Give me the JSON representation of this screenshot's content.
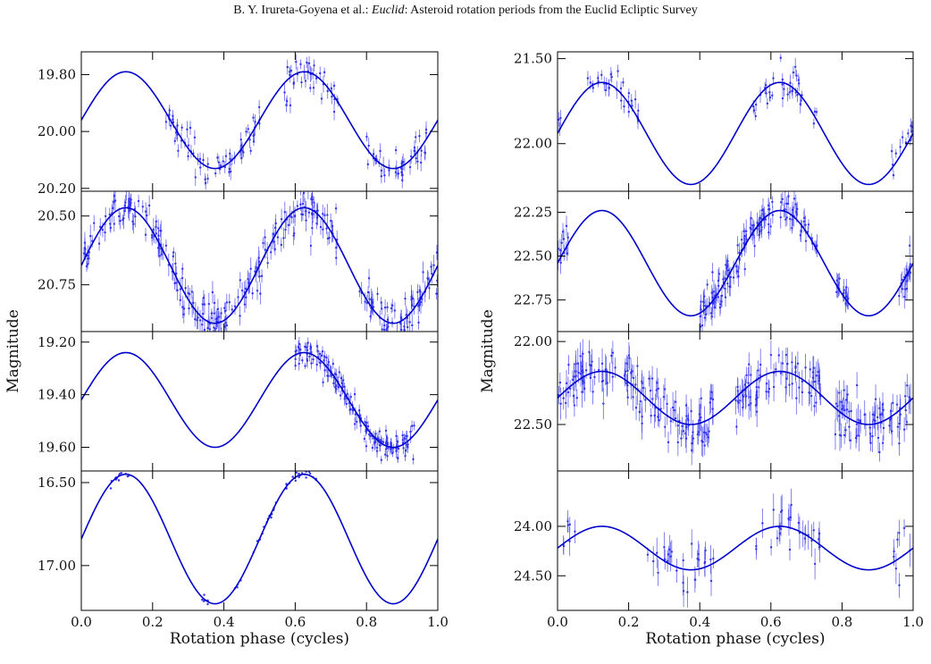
{
  "header": {
    "authors": "B. Y. Irureta-Goyena et al.: ",
    "journal": "Euclid",
    "rest": ": Asteroid rotation periods from the Euclid Ecliptic Survey"
  },
  "chart_data": [
    {
      "type": "line",
      "column": "left",
      "row": 0,
      "ylim": [
        20.21,
        19.72
      ],
      "yticks": [
        19.8,
        20.0,
        20.2
      ],
      "ytick_labels": [
        "19.80",
        "20.00",
        "20.20"
      ],
      "model": {
        "mean": 19.96,
        "amplitude": 0.17,
        "phase_max": 0.125
      },
      "obs_ranges": [
        [
          0.23,
          0.5
        ],
        [
          0.57,
          0.72
        ],
        [
          0.8,
          0.98
        ]
      ],
      "obs_count": 150,
      "noise": 0.03,
      "err": 0.022,
      "color": "#0000cc",
      "point_color": "#3333ee"
    },
    {
      "type": "line",
      "column": "left",
      "row": 1,
      "ylim": [
        20.92,
        20.41
      ],
      "yticks": [
        20.5,
        20.75
      ],
      "ytick_labels": [
        "20.50",
        "20.75"
      ],
      "model": {
        "mean": 20.68,
        "amplitude": 0.21,
        "phase_max": 0.125
      },
      "obs_ranges": [
        [
          0.0,
          0.5
        ],
        [
          0.5,
          0.72
        ],
        [
          0.78,
          1.0
        ]
      ],
      "obs_count": 320,
      "noise": 0.04,
      "err": 0.03,
      "color": "#0000cc",
      "point_color": "#3333ee"
    },
    {
      "type": "line",
      "column": "left",
      "row": 2,
      "ylim": [
        19.69,
        19.16
      ],
      "yticks": [
        19.2,
        19.4,
        19.6
      ],
      "ytick_labels": [
        "19.20",
        "19.40",
        "19.60"
      ],
      "model": {
        "mean": 19.42,
        "amplitude": 0.18,
        "phase_max": 0.125
      },
      "obs_ranges": [
        [
          0.6,
          0.94
        ]
      ],
      "obs_count": 170,
      "noise": 0.025,
      "err": 0.02,
      "color": "#0000cc",
      "point_color": "#3333ee"
    },
    {
      "type": "line",
      "column": "left",
      "row": 3,
      "ylim": [
        17.27,
        16.43
      ],
      "yticks": [
        16.5,
        17.0
      ],
      "ytick_labels": [
        "16.50",
        "17.00"
      ],
      "model": {
        "mean": 16.84,
        "amplitude": 0.39,
        "phase_max": 0.125
      },
      "obs_ranges": [
        [
          0.08,
          0.14
        ],
        [
          0.33,
          0.36
        ],
        [
          0.43,
          0.45
        ],
        [
          0.48,
          0.55
        ],
        [
          0.57,
          0.66
        ]
      ],
      "obs_count": 60,
      "noise": 0.012,
      "err": 0.006,
      "color": "#0000cc",
      "point_color": "#3333ee",
      "xticks": [
        0.0,
        0.2,
        0.4,
        0.6,
        0.8,
        1.0
      ],
      "xtick_labels": [
        "0.0",
        "0.2",
        "0.4",
        "0.6",
        "0.8",
        "1.0"
      ],
      "xlabel": "Rotation phase (cycles)"
    },
    {
      "type": "line",
      "column": "right",
      "row": 0,
      "ylim": [
        22.28,
        21.46
      ],
      "yticks": [
        21.5,
        22.0
      ],
      "ytick_labels": [
        "21.50",
        "22.00"
      ],
      "model": {
        "mean": 21.94,
        "amplitude": 0.3,
        "phase_max": 0.125
      },
      "obs_ranges": [
        [
          0.0,
          0.01
        ],
        [
          0.08,
          0.23
        ],
        [
          0.55,
          0.73
        ],
        [
          0.94,
          1.0
        ]
      ],
      "obs_count": 80,
      "noise": 0.05,
      "err": 0.04,
      "color": "#0000cc",
      "point_color": "#3333ee"
    },
    {
      "type": "line",
      "column": "right",
      "row": 1,
      "ylim": [
        22.93,
        22.13
      ],
      "yticks": [
        22.25,
        22.5,
        22.75
      ],
      "ytick_labels": [
        "22.25",
        "22.50",
        "22.75"
      ],
      "model": {
        "mean": 22.54,
        "amplitude": 0.3,
        "phase_max": 0.125
      },
      "obs_ranges": [
        [
          0.0,
          0.03
        ],
        [
          0.4,
          0.73
        ],
        [
          0.78,
          0.82
        ],
        [
          0.96,
          1.0
        ]
      ],
      "obs_count": 200,
      "noise": 0.05,
      "err": 0.05,
      "color": "#0000cc",
      "point_color": "#3333ee"
    },
    {
      "type": "line",
      "column": "right",
      "row": 2,
      "ylim": [
        22.78,
        21.94
      ],
      "yticks": [
        22.0,
        22.5
      ],
      "ytick_labels": [
        "22.00",
        "22.50"
      ],
      "model": {
        "mean": 22.34,
        "amplitude": 0.16,
        "phase_max": 0.125
      },
      "obs_ranges": [
        [
          0.0,
          0.44
        ],
        [
          0.5,
          0.74
        ],
        [
          0.78,
          1.0
        ]
      ],
      "obs_count": 300,
      "noise": 0.08,
      "err": 0.07,
      "color": "#0000cc",
      "point_color": "#3333ee"
    },
    {
      "type": "line",
      "column": "right",
      "row": 3,
      "ylim": [
        24.85,
        23.44
      ],
      "yticks": [
        24.0,
        24.5
      ],
      "ytick_labels": [
        "24.00",
        "24.50"
      ],
      "model": {
        "mean": 24.22,
        "amplitude": 0.22,
        "phase_max": 0.125
      },
      "obs_ranges": [
        [
          0.0,
          0.05
        ],
        [
          0.23,
          0.44
        ],
        [
          0.55,
          0.76
        ],
        [
          0.94,
          1.0
        ]
      ],
      "obs_count": 70,
      "noise": 0.12,
      "err": 0.12,
      "color": "#0000cc",
      "point_color": "#3333ee",
      "xticks": [
        0.0,
        0.2,
        0.4,
        0.6,
        0.8,
        1.0
      ],
      "xtick_labels": [
        "0.0",
        "0.2",
        "0.4",
        "0.6",
        "0.8",
        "1.0"
      ],
      "xlabel": "Rotation phase (cycles)"
    }
  ],
  "labels": {
    "left_ylabel": "Magnitude",
    "right_ylabel": "Magnitude"
  }
}
